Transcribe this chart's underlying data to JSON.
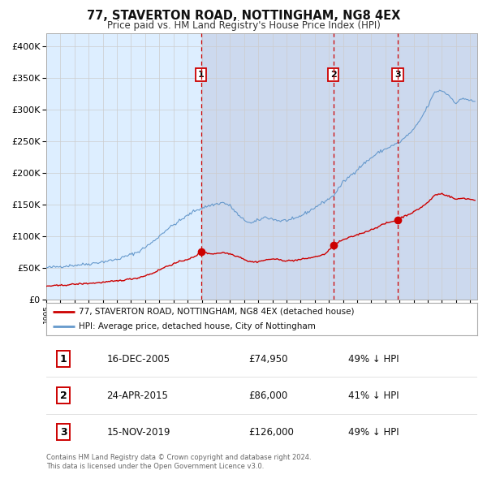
{
  "title": "77, STAVERTON ROAD, NOTTINGHAM, NG8 4EX",
  "subtitle": "Price paid vs. HM Land Registry's House Price Index (HPI)",
  "legend_property": "77, STAVERTON ROAD, NOTTINGHAM, NG8 4EX (detached house)",
  "legend_hpi": "HPI: Average price, detached house, City of Nottingham",
  "footer1": "Contains HM Land Registry data © Crown copyright and database right 2024.",
  "footer2": "This data is licensed under the Open Government Licence v3.0.",
  "transactions": [
    {
      "num": 1,
      "date": "16-DEC-2005",
      "date_x": 2005.96,
      "price": 74950,
      "pct": "49% ↓ HPI"
    },
    {
      "num": 2,
      "date": "24-APR-2015",
      "date_x": 2015.31,
      "price": 86000,
      "pct": "41% ↓ HPI"
    },
    {
      "num": 3,
      "date": "15-NOV-2019",
      "date_x": 2019.87,
      "price": 126000,
      "pct": "49% ↓ HPI"
    }
  ],
  "ylim": [
    0,
    420000
  ],
  "xlim_start": 1995.0,
  "xlim_end": 2025.5,
  "background_color": "#ffffff",
  "plot_bg_color": "#ddeeff",
  "shaded_bg_color": "#ccd9ee",
  "property_line_color": "#cc0000",
  "hpi_line_color": "#6699cc",
  "dashed_line_color": "#cc0000",
  "marker_color": "#cc0000",
  "box_edge_color": "#cc0000",
  "grid_color": "#cccccc",
  "yticks": [
    0,
    50000,
    100000,
    150000,
    200000,
    250000,
    300000,
    350000,
    400000
  ]
}
